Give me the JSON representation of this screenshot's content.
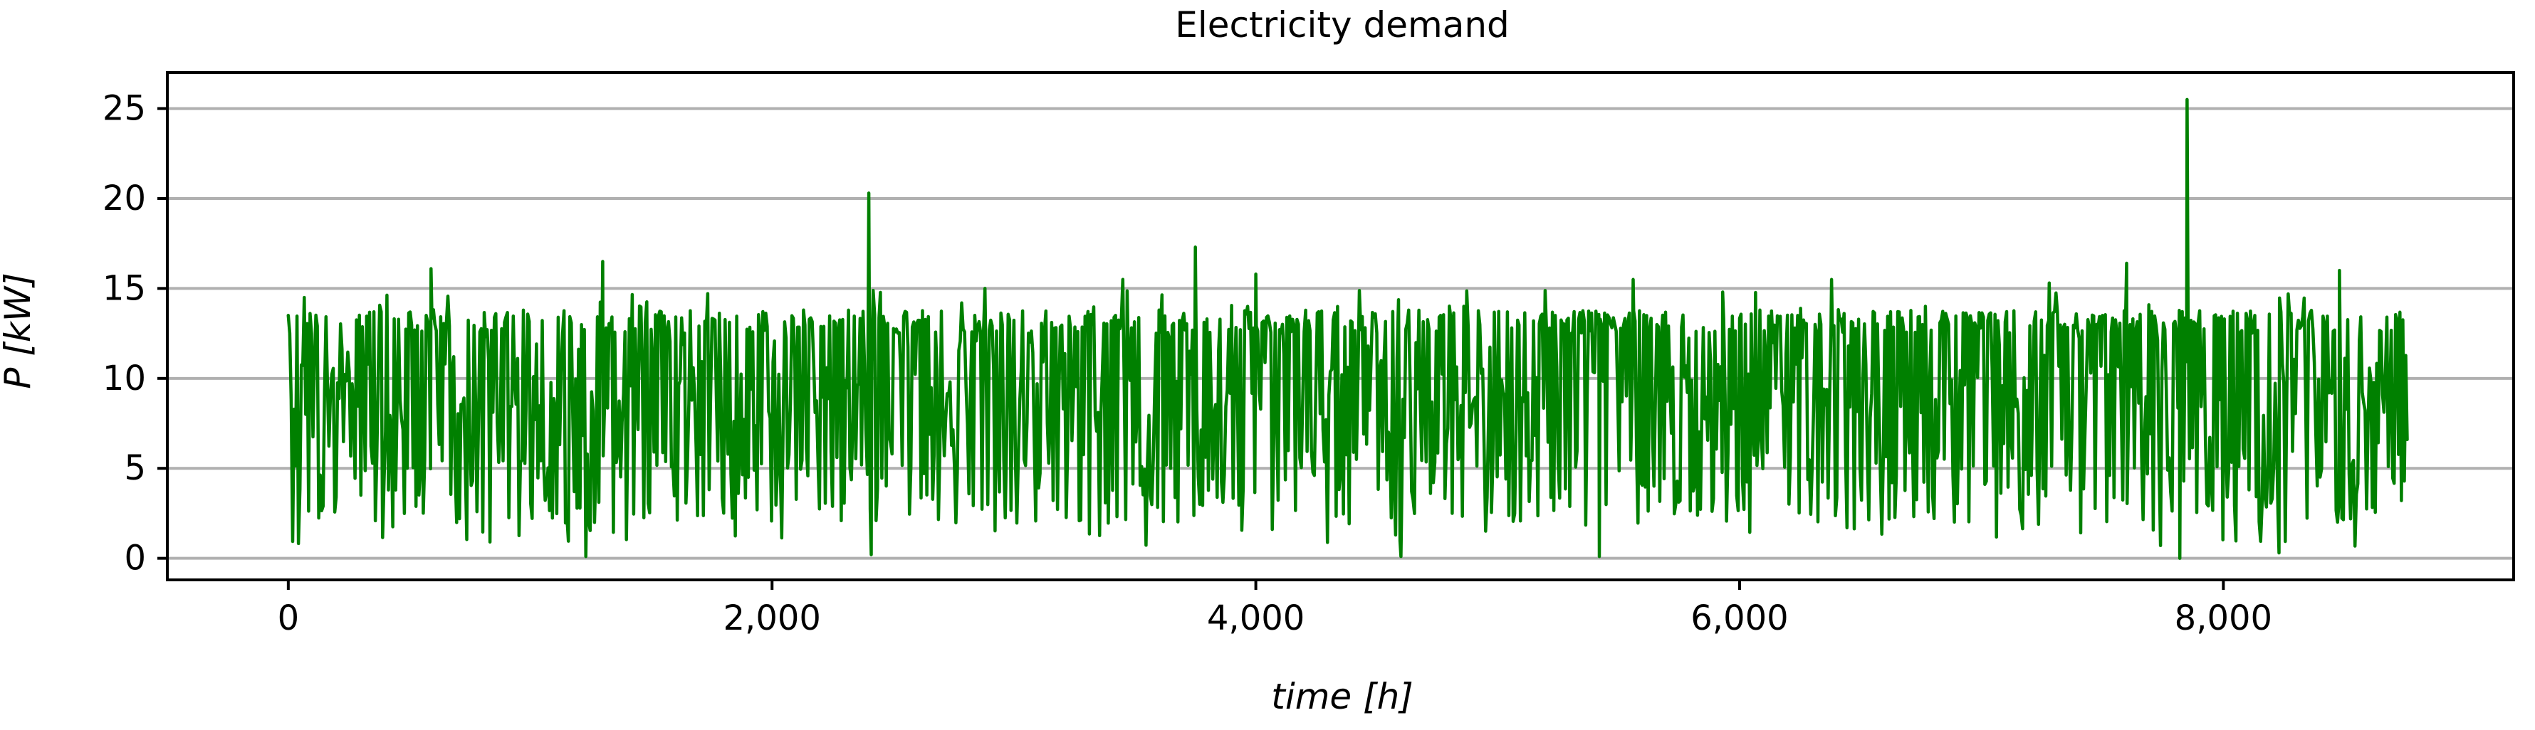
{
  "chart_data": {
    "type": "line",
    "title": "Electricity demand",
    "xlabel": "time [h]",
    "ylabel": "P [kW]",
    "xlim": [
      -500,
      9200
    ],
    "ylim": [
      -1.2,
      27
    ],
    "x_ticks": [
      0,
      2000,
      4000,
      6000,
      8000
    ],
    "x_tick_labels": [
      "0",
      "2,000",
      "4,000",
      "6,000",
      "8,000"
    ],
    "y_ticks": [
      0,
      5,
      10,
      15,
      20,
      25
    ],
    "y_tick_labels": [
      "0",
      "5",
      "10",
      "15",
      "20",
      "25"
    ],
    "grid": "horizontal",
    "legend": "none",
    "series": [
      {
        "color": "#008000",
        "x_start": 0,
        "x_step": 1,
        "x_end": 8759,
        "typical_range": [
          3,
          13.8
        ],
        "baseline_mean": 9.3,
        "min": 0,
        "peaks": [
          {
            "x": 0,
            "y": 13.5
          },
          {
            "x": 590,
            "y": 16.1
          },
          {
            "x": 1300,
            "y": 16.5
          },
          {
            "x": 1230,
            "y": 0.1
          },
          {
            "x": 2400,
            "y": 20.3
          },
          {
            "x": 2410,
            "y": 0.2
          },
          {
            "x": 2880,
            "y": 15.0
          },
          {
            "x": 3450,
            "y": 15.5
          },
          {
            "x": 3750,
            "y": 17.3
          },
          {
            "x": 4000,
            "y": 15.8
          },
          {
            "x": 4600,
            "y": 0.1
          },
          {
            "x": 5420,
            "y": 0.1
          },
          {
            "x": 5560,
            "y": 15.5
          },
          {
            "x": 5930,
            "y": 14.8
          },
          {
            "x": 6380,
            "y": 15.5
          },
          {
            "x": 7280,
            "y": 15.3
          },
          {
            "x": 7600,
            "y": 16.4
          },
          {
            "x": 7820,
            "y": 0.0
          },
          {
            "x": 7850,
            "y": 25.5
          },
          {
            "x": 8230,
            "y": 0.3
          },
          {
            "x": 8480,
            "y": 16.0
          },
          {
            "x": 8760,
            "y": 6.6
          }
        ]
      }
    ]
  }
}
